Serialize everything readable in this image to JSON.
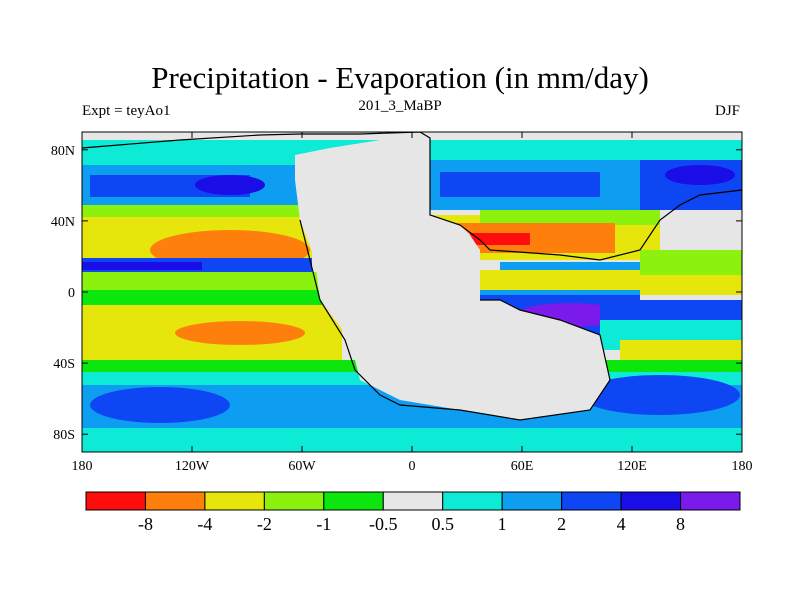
{
  "header": {
    "title": "Precipitation - Evaporation (in mm/day)",
    "subtitle_center": "201_3_MaBP",
    "subtitle_left": "Expt = teyAo1",
    "subtitle_right": "DJF"
  },
  "map": {
    "lon_range": [
      -180,
      180
    ],
    "lat_range": [
      -90,
      90
    ],
    "y_ticks": [
      {
        "lat": 80,
        "label": "80N"
      },
      {
        "lat": 40,
        "label": "40N"
      },
      {
        "lat": 0,
        "label": "0"
      },
      {
        "lat": -40,
        "label": "40S"
      },
      {
        "lat": -80,
        "label": "80S"
      }
    ],
    "x_ticks": [
      {
        "lon": -180,
        "label": "180"
      },
      {
        "lon": -120,
        "label": "120W"
      },
      {
        "lon": -60,
        "label": "60W"
      },
      {
        "lon": 0,
        "label": "0"
      },
      {
        "lon": 60,
        "label": "60E"
      },
      {
        "lon": 120,
        "label": "120E"
      },
      {
        "lon": 180,
        "label": "180"
      }
    ]
  },
  "colorbar": {
    "colors": [
      "#ff0d0d",
      "#ff7f0d",
      "#e6e60d",
      "#8cf20d",
      "#0de60d",
      "#e6e6e6",
      "#0debd7",
      "#0d9ef2",
      "#0d46f2",
      "#1a0de6",
      "#7a1aeb"
    ],
    "labels": [
      "-8",
      "-4",
      "-2",
      "-1",
      "-0.5",
      "0.5",
      "1",
      "2",
      "4",
      "8"
    ]
  }
}
